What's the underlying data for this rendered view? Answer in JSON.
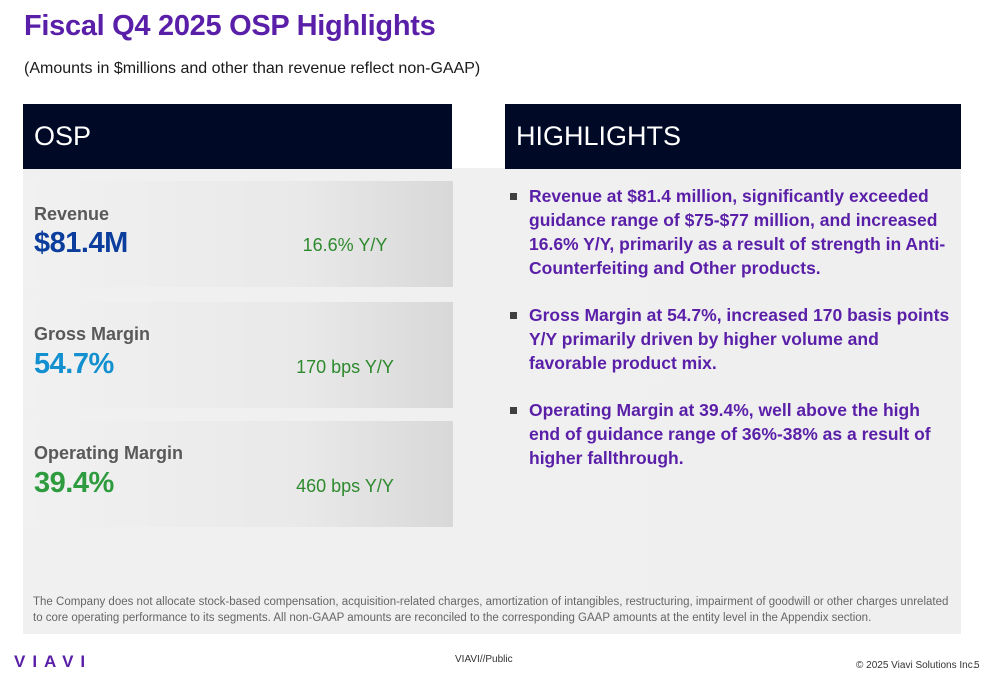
{
  "title": "Fiscal Q4 2025 OSP Highlights",
  "subtitle": "(Amounts in $millions and other than revenue reflect non-GAAP)",
  "osp_header": "OSP",
  "highlights_header": "HIGHLIGHTS",
  "metrics": [
    {
      "label": "Revenue",
      "value": "$81.4M",
      "yoy": "16.6% Y/Y",
      "color": "#0b3e9c"
    },
    {
      "label": "Gross Margin",
      "value": "54.7%",
      "yoy": "170 bps Y/Y",
      "color": "#1290cf"
    },
    {
      "label": "Operating Margin",
      "value": "39.4%",
      "yoy": "460 bps Y/Y",
      "color": "#2e9b3e"
    }
  ],
  "highlights": [
    "Revenue at $81.4 million, significantly exceeded guidance range of $75-$77 million, and increased 16.6% Y/Y, primarily as a result of strength in Anti-Counterfeiting and Other products.",
    "Gross Margin at 54.7%, increased 170 basis points Y/Y primarily driven by higher volume and favorable product mix.",
    "Operating Margin at 39.4%, well above the high end of guidance range of 36%-38% as a result of higher fallthrough."
  ],
  "footnote": "The Company does not allocate stock-based compensation, acquisition-related charges, amortization of intangibles, restructuring, impairment of goodwill or other charges unrelated to core operating performance to its segments. All non-GAAP amounts are reconciled to the corresponding GAAP amounts at the entity level in the Appendix section.",
  "footer": {
    "logo": "VIAVI",
    "classification": "VIAVI//Public",
    "copyright": "© 2025 Viavi Solutions Inc.",
    "page": "5"
  }
}
